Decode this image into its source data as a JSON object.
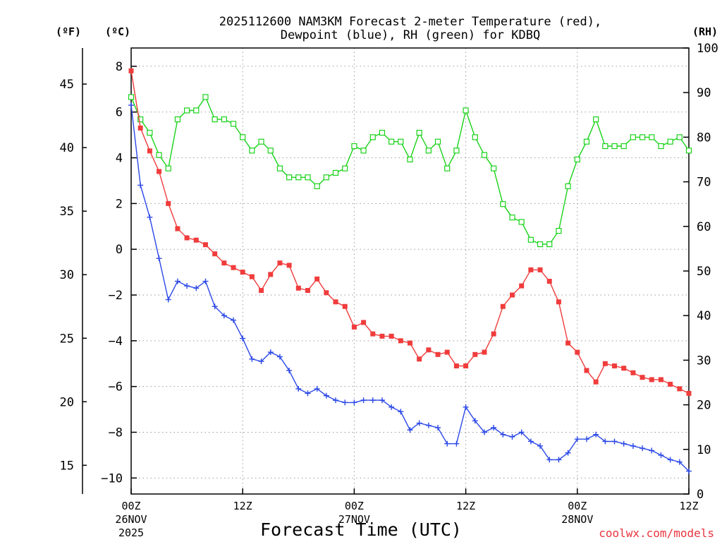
{
  "chart_data": {
    "type": "line",
    "title_line1": "2025112600 NAM3KM Forecast 2-meter Temperature (red),",
    "title_line2": "Dewpoint (blue), RH (green) for KDBQ",
    "xlabel": "Forecast Time (UTC)",
    "credit": "coolwx.com/models",
    "units": {
      "fahrenheit": "(ºF)",
      "celsius": "(ºC)",
      "rh": "(RH)"
    },
    "x_range_hours": [
      0,
      60
    ],
    "x_ticks": [
      {
        "hour": 0,
        "label": "00Z",
        "date": "26NOV",
        "year": "2025"
      },
      {
        "hour": 12,
        "label": "12Z",
        "date": "",
        "year": ""
      },
      {
        "hour": 24,
        "label": "00Z",
        "date": "27NOV",
        "year": ""
      },
      {
        "hour": 36,
        "label": "12Z",
        "date": "",
        "year": ""
      },
      {
        "hour": 48,
        "label": "00Z",
        "date": "28NOV",
        "year": ""
      },
      {
        "hour": 60,
        "label": "12Z",
        "date": "",
        "year": ""
      }
    ],
    "celsius_ticks": [
      8,
      6,
      4,
      2,
      0,
      -2,
      -4,
      -6,
      -8,
      -10
    ],
    "celsius_tick_labels": [
      "8",
      "6",
      "4",
      "2",
      "0",
      "−2",
      "−4",
      "−6",
      "−8",
      "−10"
    ],
    "fahrenheit_ticks": [
      45,
      40,
      35,
      30,
      25,
      20,
      15
    ],
    "rh_ticks": [
      100,
      90,
      80,
      70,
      60,
      50,
      40,
      30,
      20,
      10,
      0
    ],
    "ylim_celsius": [
      -10.7,
      8.8
    ],
    "ylim_rh": [
      0,
      100
    ],
    "colors": {
      "temperature": "#f03c3c",
      "dewpoint": "#2b48e8",
      "rh": "#19d219"
    },
    "series": [
      {
        "name": "Temperature",
        "unit": "C",
        "values": [
          7.8,
          5.3,
          4.3,
          3.4,
          2.0,
          0.9,
          0.5,
          0.4,
          0.2,
          -0.2,
          -0.6,
          -0.8,
          -1.0,
          -1.2,
          -1.8,
          -1.1,
          -0.6,
          -0.7,
          -1.7,
          -1.8,
          -1.3,
          -1.9,
          -2.3,
          -2.5,
          -3.4,
          -3.2,
          -3.7,
          -3.8,
          -3.8,
          -4.0,
          -4.1,
          -4.8,
          -4.4,
          -4.6,
          -4.5,
          -5.1,
          -5.1,
          -4.6,
          -4.5,
          -3.7,
          -2.5,
          -2.0,
          -1.6,
          -0.9,
          -0.9,
          -1.4,
          -2.3,
          -4.1,
          -4.5,
          -5.3,
          -5.8,
          -5.0,
          -5.1,
          -5.2,
          -5.4,
          -5.6,
          -5.7,
          -5.7,
          -5.9,
          -6.1,
          -6.3
        ]
      },
      {
        "name": "Dewpoint",
        "unit": "C",
        "values": [
          6.3,
          2.8,
          1.4,
          -0.4,
          -2.2,
          -1.4,
          -1.6,
          -1.7,
          -1.4,
          -2.5,
          -2.9,
          -3.1,
          -3.9,
          -4.8,
          -4.9,
          -4.5,
          -4.7,
          -5.3,
          -6.1,
          -6.3,
          -6.1,
          -6.4,
          -6.6,
          -6.7,
          -6.7,
          -6.6,
          -6.6,
          -6.6,
          -6.9,
          -7.1,
          -7.9,
          -7.6,
          -7.7,
          -7.8,
          -8.5,
          -8.5,
          -6.9,
          -7.5,
          -8.0,
          -7.8,
          -8.1,
          -8.2,
          -8.0,
          -8.4,
          -8.6,
          -9.2,
          -9.2,
          -8.9,
          -8.3,
          -8.3,
          -8.1,
          -8.4,
          -8.4,
          -8.5,
          -8.6,
          -8.7,
          -8.8,
          -9.0,
          -9.2,
          -9.3,
          -9.7
        ]
      },
      {
        "name": "RH",
        "unit": "%",
        "values": [
          89,
          84,
          81,
          76,
          73,
          84,
          86,
          86,
          89,
          84,
          84,
          83,
          80,
          77,
          79,
          77,
          73,
          71,
          71,
          71,
          69,
          71,
          72,
          73,
          78,
          77,
          80,
          81,
          79,
          79,
          75,
          81,
          77,
          79,
          73,
          77,
          86,
          80,
          76,
          73,
          65,
          62,
          61,
          57,
          56,
          56,
          59,
          69,
          75,
          79,
          84,
          78,
          78,
          78,
          80,
          80,
          80,
          78,
          79,
          80,
          77
        ]
      }
    ]
  }
}
